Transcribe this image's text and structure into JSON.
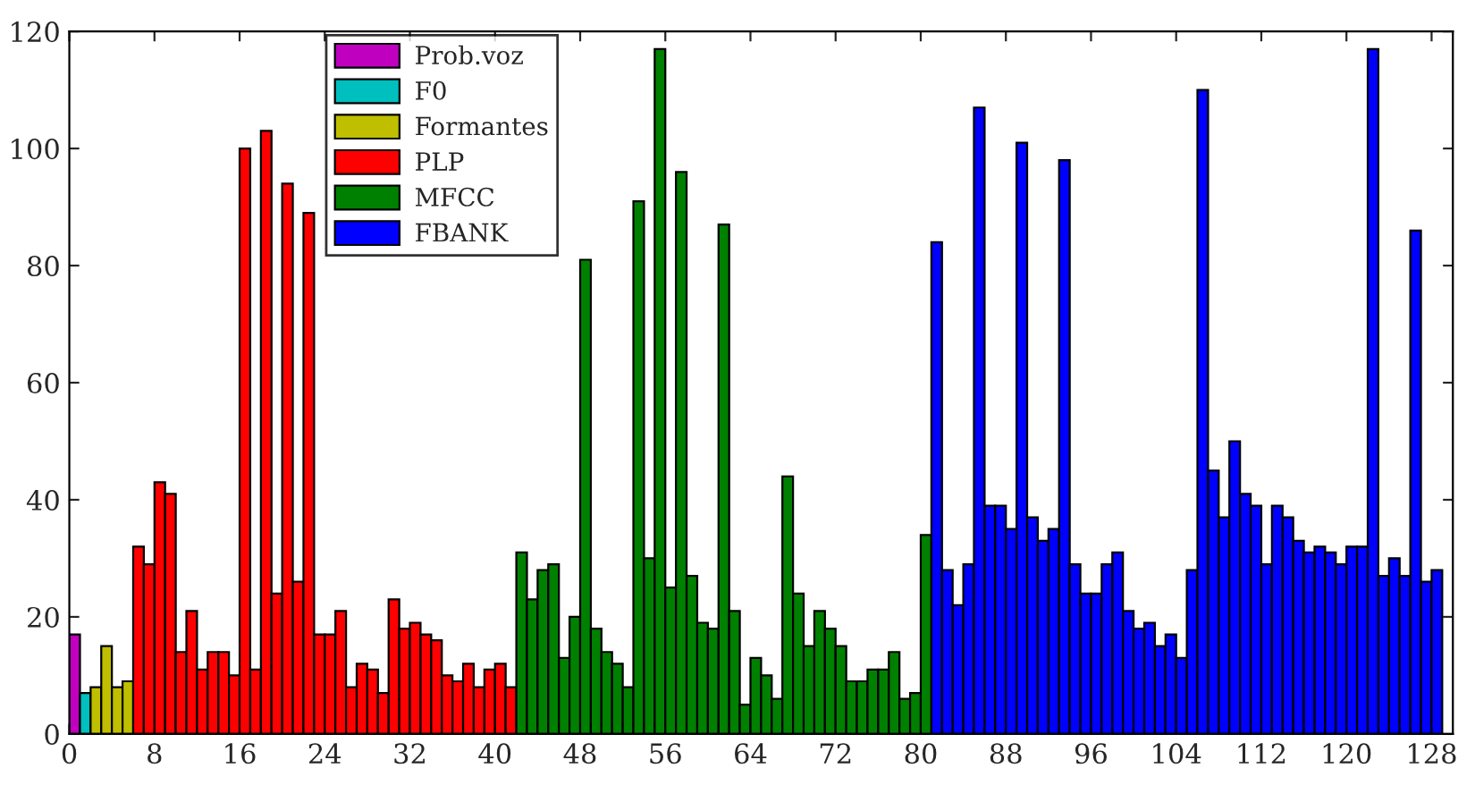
{
  "chart_data": {
    "type": "bar",
    "xlim": [
      0,
      130
    ],
    "xticks": [
      0,
      8,
      16,
      24,
      32,
      40,
      48,
      56,
      64,
      72,
      80,
      88,
      96,
      104,
      112,
      120,
      128
    ],
    "ylim": [
      0,
      120
    ],
    "yticks": [
      0,
      20,
      40,
      60,
      80,
      100,
      120
    ],
    "grid": false,
    "legend": "top left",
    "series": [
      {
        "name": "Prob.voz",
        "color": "#bf00bf",
        "x": [
          0
        ],
        "values": [
          17
        ]
      },
      {
        "name": "F0",
        "color": "#00bfbf",
        "x": [
          1
        ],
        "values": [
          7
        ]
      },
      {
        "name": "Formantes",
        "color": "#bfbf00",
        "x": [
          2,
          3,
          4,
          5
        ],
        "values": [
          8,
          15,
          8,
          9
        ]
      },
      {
        "name": "PLP",
        "color": "#ff0000",
        "x": [
          6,
          7,
          8,
          9,
          10,
          11,
          12,
          13,
          14,
          15,
          16,
          17,
          18,
          19,
          20,
          21,
          22,
          23,
          24,
          25,
          26,
          27,
          28,
          29,
          30,
          31,
          32,
          33,
          34,
          35,
          36,
          37,
          38,
          39,
          40,
          41
        ],
        "values": [
          32,
          29,
          43,
          41,
          14,
          21,
          11,
          14,
          14,
          10,
          100,
          11,
          103,
          24,
          94,
          26,
          89,
          17,
          17,
          21,
          8,
          12,
          11,
          7,
          23,
          18,
          19,
          17,
          16,
          10,
          9,
          12,
          8,
          11,
          12,
          8
        ]
      },
      {
        "name": "MFCC",
        "color": "#008000",
        "x": [
          42,
          43,
          44,
          45,
          46,
          47,
          48,
          49,
          50,
          51,
          52,
          53,
          54,
          55,
          56,
          57,
          58,
          59,
          60,
          61,
          62,
          63,
          64,
          65,
          66,
          67,
          68,
          69,
          70,
          71,
          72,
          73,
          74,
          75,
          76,
          77,
          78,
          79,
          80
        ],
        "values": [
          31,
          23,
          28,
          29,
          13,
          20,
          81,
          18,
          14,
          12,
          8,
          91,
          30,
          117,
          25,
          96,
          27,
          19,
          18,
          87,
          21,
          5,
          13,
          10,
          6,
          44,
          24,
          15,
          21,
          18,
          15,
          9,
          9,
          11,
          11,
          14,
          6,
          7,
          34
        ]
      },
      {
        "name": "FBANK",
        "color": "#0000ff",
        "x": [
          81,
          82,
          83,
          84,
          85,
          86,
          87,
          88,
          89,
          90,
          91,
          92,
          93,
          94,
          95,
          96,
          97,
          98,
          99,
          100,
          101,
          102,
          103,
          104,
          105,
          106,
          107,
          108,
          109,
          110,
          111,
          112,
          113,
          114,
          115,
          116,
          117,
          118,
          119,
          120,
          121,
          122,
          123,
          124,
          125,
          126,
          127,
          128
        ],
        "values": [
          84,
          28,
          22,
          29,
          107,
          39,
          39,
          35,
          101,
          37,
          33,
          35,
          98,
          29,
          24,
          24,
          29,
          31,
          21,
          18,
          19,
          15,
          17,
          13,
          28,
          110,
          45,
          37,
          50,
          41,
          39,
          29,
          39,
          37,
          33,
          31,
          32,
          31,
          29,
          32,
          32,
          117,
          27,
          30,
          27,
          86,
          26,
          28
        ]
      }
    ]
  }
}
